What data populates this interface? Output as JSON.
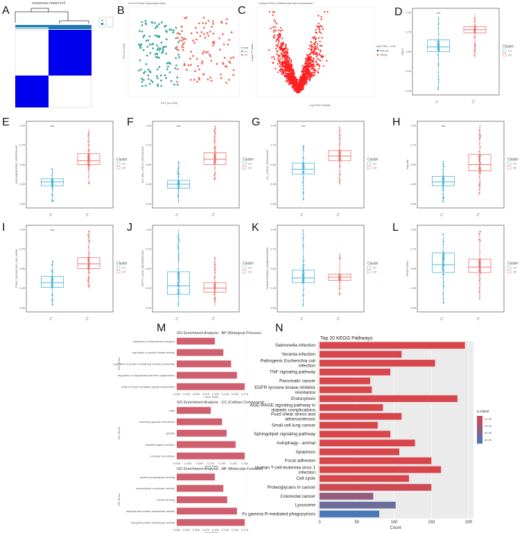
{
  "panel_labels": [
    "A",
    "B",
    "C",
    "D",
    "E",
    "F",
    "G",
    "H",
    "I",
    "J",
    "K",
    "L",
    "M",
    "N"
  ],
  "panel_a": {
    "title": "consensus matrix k=2",
    "legend": [
      "1",
      "2"
    ],
    "colors": {
      "cluster1": "#a6cee3",
      "cluster2": "#1f78b4",
      "block": "#0000ee"
    }
  },
  "panel_b": {
    "title": "PCA of Gene Expression Data",
    "xlabel": "PC1 (xx.xx%)",
    "ylabel": "PC2 (x.xx%)",
    "legend_title": "Group",
    "legend": [
      "C1",
      "C2"
    ]
  },
  "panel_c": {
    "title": "Volcano Plot of Differential Gene Expression",
    "xlabel": "Log Fold Change",
    "ylabel": "-Log10 P-Value",
    "legend_title": "adj.P.Val < 0.05",
    "legend": [
      "FALSE",
      "TRUE"
    ]
  },
  "colors": {
    "c1": "#4bb5d6",
    "c2": "#e8736c",
    "c1_fill": "#3aa7a0",
    "c2_fill": "#ef6b5e",
    "volcano": "#ff2020"
  },
  "chart_data": [
    {
      "type": "box",
      "panel": "D",
      "ylabel": "MALT",
      "categories": [
        "C1",
        "C2"
      ],
      "legend_title": "Cluster",
      "legend": [
        "C1",
        "C2"
      ],
      "sig": "***",
      "yticks": [
        "0.00",
        "0.25",
        "0.50",
        "0.75",
        "1.00"
      ],
      "ylim": [
        0,
        1
      ],
      "boxes": [
        {
          "q1": 0.5,
          "median": 0.56,
          "q3": 0.65,
          "lo": 0.0,
          "hi": 0.95,
          "n": 90
        },
        {
          "q1": 0.74,
          "median": 0.78,
          "q3": 0.82,
          "lo": 0.42,
          "hi": 0.98,
          "n": 60
        }
      ]
    },
    {
      "type": "box",
      "panel": "E",
      "ylabel": "INFLAMMATORY_RESPONSE",
      "categories": [
        "C1",
        "C2"
      ],
      "legend_title": "Cluster",
      "legend": [
        "C1",
        "C2"
      ],
      "sig": "***",
      "yticks": [
        "0.00",
        "0.25",
        "0.50",
        "0.75",
        "1.00"
      ],
      "ylim": [
        0,
        1
      ],
      "boxes": [
        {
          "q1": 0.23,
          "median": 0.28,
          "q3": 0.32,
          "lo": 0.02,
          "hi": 0.45,
          "n": 70
        },
        {
          "q1": 0.5,
          "median": 0.55,
          "q3": 0.64,
          "lo": 0.25,
          "hi": 0.95,
          "n": 90
        }
      ]
    },
    {
      "type": "box",
      "panel": "F",
      "ylabel": "IL6_JAK_STAT3_SIGNALING",
      "categories": [
        "C1",
        "C2"
      ],
      "legend_title": "Cluster",
      "legend": [
        "C1",
        "C2"
      ],
      "sig": "***",
      "yticks": [
        "0.00",
        "0.25",
        "0.50",
        "0.75",
        "1.00"
      ],
      "ylim": [
        0,
        1
      ],
      "boxes": [
        {
          "q1": 0.2,
          "median": 0.25,
          "q3": 0.3,
          "lo": 0.0,
          "hi": 0.55,
          "n": 70
        },
        {
          "q1": 0.5,
          "median": 0.57,
          "q3": 0.65,
          "lo": 0.3,
          "hi": 1.0,
          "n": 90
        }
      ]
    },
    {
      "type": "box",
      "panel": "G",
      "ylabel": "IL2_STAT5_SIGNALING",
      "categories": [
        "C1",
        "C2"
      ],
      "legend_title": "Cluster",
      "legend": [
        "C1",
        "C2"
      ],
      "sig": "***",
      "yticks": [
        "0.00",
        "0.25",
        "0.50",
        "0.75",
        "1.00"
      ],
      "ylim": [
        0,
        1
      ],
      "boxes": [
        {
          "q1": 0.38,
          "median": 0.44,
          "q3": 0.52,
          "lo": 0.05,
          "hi": 0.75,
          "n": 80
        },
        {
          "q1": 0.55,
          "median": 0.61,
          "q3": 0.68,
          "lo": 0.25,
          "hi": 0.98,
          "n": 90
        }
      ]
    },
    {
      "type": "box",
      "panel": "H",
      "ylabel": "Glycolis",
      "categories": [
        "C1",
        "C2"
      ],
      "legend_title": "Cluster",
      "legend": [
        "C1",
        "C2"
      ],
      "sig": "***",
      "yticks": [
        "0.00",
        "0.25",
        "0.50",
        "0.75",
        "1.00"
      ],
      "ylim": [
        0,
        1
      ],
      "boxes": [
        {
          "q1": 0.23,
          "median": 0.28,
          "q3": 0.35,
          "lo": 0.02,
          "hi": 0.55,
          "n": 70
        },
        {
          "q1": 0.42,
          "median": 0.5,
          "q3": 0.63,
          "lo": 0.12,
          "hi": 1.0,
          "n": 90
        }
      ]
    },
    {
      "type": "box",
      "panel": "I",
      "ylabel": "TNFA_SIGNALING_VIA_NFKB",
      "categories": [
        "C1",
        "C2"
      ],
      "legend_title": "Cluster",
      "legend": [
        "C1",
        "C2"
      ],
      "sig": "***",
      "yticks": [
        "0.00",
        "0.25",
        "0.50",
        "0.75",
        "1.00"
      ],
      "ylim": [
        0,
        1
      ],
      "boxes": [
        {
          "q1": 0.26,
          "median": 0.32,
          "q3": 0.4,
          "lo": 0.02,
          "hi": 0.6,
          "n": 70
        },
        {
          "q1": 0.5,
          "median": 0.56,
          "q3": 0.64,
          "lo": 0.25,
          "hi": 1.0,
          "n": 90
        }
      ]
    },
    {
      "type": "box",
      "panel": "J",
      "ylabel": "FATTY_ACID_METABOLISM",
      "categories": [
        "C1",
        "C2"
      ],
      "legend_title": "Cluster",
      "legend": [
        "C1",
        "C2"
      ],
      "sig": "",
      "yticks": [
        "0.00",
        "0.25",
        "0.50",
        "0.75",
        "1.00"
      ],
      "ylim": [
        0,
        1
      ],
      "boxes": [
        {
          "q1": 0.17,
          "median": 0.28,
          "q3": 0.46,
          "lo": 0.0,
          "hi": 1.0,
          "n": 100
        },
        {
          "q1": 0.2,
          "median": 0.25,
          "q3": 0.32,
          "lo": 0.02,
          "hi": 0.65,
          "n": 60
        }
      ]
    },
    {
      "type": "box",
      "panel": "K",
      "ylabel": "CHOLESTEROL_HOMEOSTASIS",
      "categories": [
        "C1",
        "C2"
      ],
      "legend_title": "Cluster",
      "legend": [
        "C1",
        "C2"
      ],
      "sig": "",
      "yticks": [
        "0.00",
        "0.25",
        "0.50",
        "0.75",
        "1.00"
      ],
      "ylim": [
        0,
        1
      ],
      "boxes": [
        {
          "q1": 0.32,
          "median": 0.38,
          "q3": 0.48,
          "lo": 0.02,
          "hi": 1.0,
          "n": 100
        },
        {
          "q1": 0.35,
          "median": 0.39,
          "q3": 0.43,
          "lo": 0.15,
          "hi": 0.7,
          "n": 60
        }
      ]
    },
    {
      "type": "box",
      "panel": "L",
      "ylabel": "APOPTOSIS",
      "categories": [
        "C1",
        "C2"
      ],
      "legend_title": "Cluster",
      "legend": [
        "C1",
        "C2"
      ],
      "sig": "",
      "yticks": [
        "0.00",
        "0.25",
        "0.50",
        "0.75",
        "1.00"
      ],
      "ylim": [
        0,
        1
      ],
      "boxes": [
        {
          "q1": 0.45,
          "median": 0.55,
          "q3": 0.7,
          "lo": 0.05,
          "hi": 0.95,
          "n": 100
        },
        {
          "q1": 0.45,
          "median": 0.52,
          "q3": 0.62,
          "lo": 0.1,
          "hi": 0.98,
          "n": 90
        }
      ]
    },
    {
      "type": "bar",
      "panel": "M",
      "subplots": [
        {
          "title": "GO Enrichment Analysis - BP (Biological Process)",
          "xlabel": "Gene Ratio",
          "ylabel": "GO Terms",
          "ticks": [
            "0.000",
            "0.025",
            "0.050",
            "0.075",
            "0.100",
            "0.125",
            "0.150",
            "0.175"
          ],
          "xmax": 0.175,
          "categories": [
            "regulation of intracellular transport",
            "regulation of protein kinase activity",
            "regulation of protein-containing complex assembly",
            "regulation of supramolecular fiber organization",
            "small GTPase mediated signal transduction"
          ],
          "values": [
            0.098,
            0.12,
            0.14,
            0.155,
            0.175
          ]
        },
        {
          "title": "GO Enrichment Analysis - CC (Cellular Component)",
          "xlabel": "Gene Ratio",
          "ylabel": "GO Terms",
          "ticks": [
            "0.000",
            "0.025",
            "0.050",
            "0.075",
            "0.100",
            "0.125",
            "0.150"
          ],
          "xmax": 0.15,
          "categories": [
            "ruffle",
            "secretory granule membrane",
            "spindle",
            "ubiquitin ligase complex",
            "vacuolar membrane"
          ],
          "values": [
            0.075,
            0.1,
            0.11,
            0.13,
            0.15
          ]
        },
        {
          "title": "GO Enrichment Analysis - MF (Molecular Function)",
          "xlabel": "Gene Ratio",
          "ylabel": "GO Terms",
          "ticks": [
            "0.000",
            "0.025",
            "0.050",
            "0.075",
            "0.100",
            "0.125",
            "0.150",
            "0.175"
          ],
          "xmax": 0.175,
          "categories": [
            "protein phosphatase binding",
            "transcription coactivator activity",
            "tubulin binding",
            "ubiquitin-like protein transferase activity",
            "ubiquitin-protein transferase activity"
          ],
          "values": [
            0.098,
            0.12,
            0.13,
            0.155,
            0.175
          ]
        }
      ]
    },
    {
      "type": "bar",
      "panel": "N",
      "title": "Top 20 KEGG Pathways",
      "xlabel": "Count",
      "xticks": [
        "0",
        "50",
        "100",
        "150",
        "200"
      ],
      "xmax": 200,
      "legend_title": "p.adjust",
      "legend_ticks": [
        "2e-06",
        "4e-06",
        "6e-06",
        "8e-06"
      ],
      "categories": [
        "Salmonella infection",
        "Yersinia infection",
        "Pathogenic Escherichia coli infection",
        "TNF signaling pathway",
        "Pancreatic cancer",
        "EGFR tyrosine kinase inhibitor resistance",
        "Endocytosis",
        "AGE-RAGE signaling pathway in diabetic complications",
        "Fluid shear stress and atherosclerosis",
        "Small cell lung cancer",
        "Sphingolipid signaling pathway",
        "Autophagy - animal",
        "Apoptosis",
        "Focal adhesion",
        "Human T-cell leukemia virus 1 infection",
        "Cell cycle",
        "Proteoglycans in cancer",
        "Colorectal cancer",
        "Lysosome",
        "Fc gamma R-mediated phagocytosis"
      ],
      "values": [
        195,
        110,
        155,
        95,
        68,
        70,
        185,
        85,
        110,
        78,
        95,
        128,
        107,
        150,
        163,
        120,
        150,
        72,
        102,
        80
      ],
      "padjust": [
        0.2,
        0.2,
        0.2,
        0.2,
        0.2,
        0.2,
        0.2,
        0.2,
        0.2,
        0.2,
        0.2,
        0.2,
        0.2,
        0.2,
        0.2,
        0.2,
        0.25,
        0.55,
        0.75,
        0.92
      ]
    }
  ]
}
